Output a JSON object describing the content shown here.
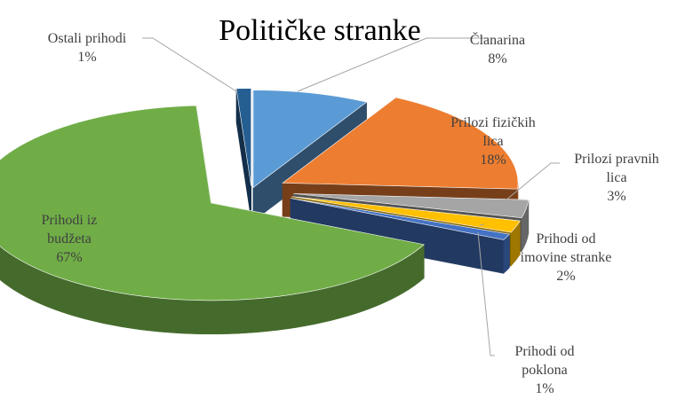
{
  "chart_data": {
    "type": "pie",
    "title": "Političke stranke",
    "three_d": true,
    "exploded": true,
    "legend": "none",
    "slices": [
      {
        "label": "Članarina",
        "value": 8,
        "pct": "8%",
        "color": "#5b9bd5"
      },
      {
        "label": "Prilozi fizičkih lica",
        "value": 18,
        "pct": "18%",
        "color": "#ed7d31"
      },
      {
        "label": "Prilozi pravnih lica",
        "value": 3,
        "pct": "3%",
        "color": "#a5a5a5"
      },
      {
        "label": "Prihodi od imovine stranke",
        "value": 2,
        "pct": "2%",
        "color": "#ffc000"
      },
      {
        "label": "Prihodi od poklona",
        "value": 1,
        "pct": "1%",
        "color": "#4472c4"
      },
      {
        "label": "Prihodi iz budžeta",
        "value": 67,
        "pct": "67%",
        "color": "#70ad47"
      },
      {
        "label": "Ostali prihodi",
        "value": 1,
        "pct": "1%",
        "color": "#255e91"
      }
    ]
  }
}
